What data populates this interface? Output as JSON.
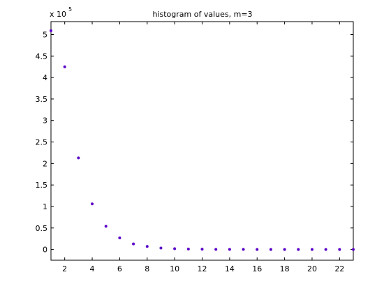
{
  "chart_data": {
    "type": "scatter",
    "title": "histogram of values, m=3",
    "xlabel": "",
    "ylabel": "",
    "y_multiplier": "x 10",
    "y_exponent": "5",
    "xlim": [
      1,
      23
    ],
    "ylim": [
      -0.25,
      5.3
    ],
    "x_ticks": [
      2,
      4,
      6,
      8,
      10,
      12,
      14,
      16,
      18,
      20,
      22
    ],
    "y_ticks": [
      0,
      0.5,
      1,
      1.5,
      2,
      2.5,
      3,
      3.5,
      4,
      4.5,
      5
    ],
    "grid": false,
    "marker_color": "#5a00c8",
    "series": [
      {
        "x": [
          1,
          2,
          3,
          4,
          5,
          6,
          7,
          8,
          9,
          10,
          11,
          12,
          13,
          14,
          15,
          16,
          17,
          18,
          19,
          20,
          21,
          22,
          23
        ],
        "values": [
          5.09,
          4.25,
          2.13,
          1.06,
          0.54,
          0.27,
          0.13,
          0.07,
          0.035,
          0.018,
          0.009,
          0.005,
          0.002,
          0.001,
          0.0006,
          0.0003,
          0.0002,
          0.0001,
          0.0001,
          0,
          0,
          0,
          0
        ]
      }
    ]
  }
}
